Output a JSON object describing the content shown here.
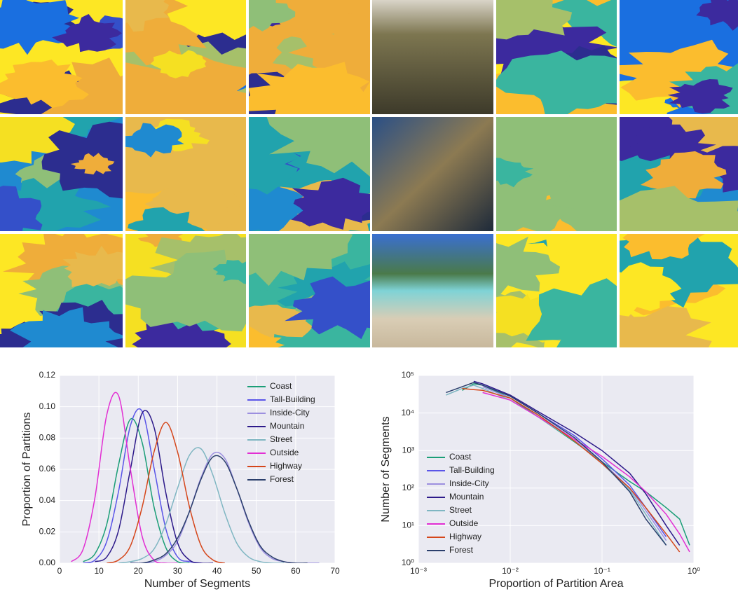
{
  "chart_data": [
    {
      "type": "line",
      "x_label": "Number of Segments",
      "y_label": "Proportion of Partitions",
      "x": [
        3,
        6,
        9,
        12,
        15,
        18,
        21,
        24,
        27,
        30,
        33,
        36,
        39,
        42,
        45,
        48,
        51,
        54,
        57,
        60,
        63,
        66
      ],
      "xlim": [
        0,
        70
      ],
      "xticks": [
        0,
        10,
        20,
        30,
        40,
        50,
        60,
        70
      ],
      "ylim": [
        0,
        0.12
      ],
      "yticks": [
        {
          "value": 0,
          "label": "0.00"
        },
        {
          "value": 0.02,
          "label": "0.02"
        },
        {
          "value": 0.04,
          "label": "0.04"
        },
        {
          "value": 0.06,
          "label": "0.06"
        },
        {
          "value": 0.08,
          "label": "0.08"
        },
        {
          "value": 0.1,
          "label": "0.10"
        },
        {
          "value": 0.12,
          "label": "0.12"
        }
      ],
      "grid": true,
      "legend": "upper right",
      "smooth": true,
      "series": [
        {
          "name": "Coast",
          "color": "#1b9e77",
          "values": [
            null,
            0.001,
            0.006,
            0.025,
            0.063,
            0.092,
            0.077,
            0.036,
            0.01,
            0.001,
            0.0,
            null,
            null,
            null,
            null,
            null,
            null,
            null,
            null,
            null,
            null,
            null
          ]
        },
        {
          "name": "Tall-Building",
          "color": "#5a55e8",
          "values": [
            null,
            0.0,
            0.002,
            0.014,
            0.046,
            0.088,
            0.097,
            0.061,
            0.022,
            0.004,
            0.001,
            0.0,
            null,
            null,
            null,
            null,
            null,
            null,
            null,
            null,
            null,
            null
          ]
        },
        {
          "name": "Inside-City",
          "color": "#9c8fdf",
          "values": [
            null,
            null,
            null,
            null,
            null,
            0.0,
            0.0,
            0.001,
            0.005,
            0.014,
            0.033,
            0.055,
            0.07,
            0.067,
            0.048,
            0.026,
            0.01,
            0.003,
            0.001,
            0.0,
            0.0,
            0.0
          ]
        },
        {
          "name": "Mountain",
          "color": "#2d1a8a",
          "values": [
            null,
            null,
            0.001,
            0.004,
            0.021,
            0.06,
            0.096,
            0.087,
            0.045,
            0.013,
            0.002,
            0.0,
            0.0,
            null,
            null,
            null,
            null,
            null,
            null,
            null,
            null,
            null
          ]
        },
        {
          "name": "Street",
          "color": "#7fb6c2",
          "values": [
            null,
            null,
            null,
            null,
            0.0,
            0.001,
            0.003,
            0.009,
            0.025,
            0.048,
            0.069,
            0.073,
            0.056,
            0.032,
            0.013,
            0.004,
            0.001,
            0.0,
            0.0,
            null,
            null,
            null
          ]
        },
        {
          "name": "Outside",
          "color": "#e22fd3",
          "values": [
            0.001,
            0.009,
            0.042,
            0.095,
            0.107,
            0.06,
            0.017,
            0.002,
            0.0,
            0.0,
            null,
            null,
            null,
            null,
            null,
            null,
            null,
            null,
            null,
            null,
            null,
            null
          ]
        },
        {
          "name": "Highway",
          "color": "#d5461a",
          "values": [
            null,
            null,
            null,
            0.0,
            0.002,
            0.011,
            0.036,
            0.071,
            0.09,
            0.071,
            0.036,
            0.011,
            0.002,
            0.0,
            null,
            null,
            null,
            null,
            null,
            null,
            null,
            null
          ]
        },
        {
          "name": "Forest",
          "color": "#2b3f6c",
          "values": [
            null,
            null,
            null,
            null,
            null,
            0.0,
            0.0,
            0.002,
            0.006,
            0.016,
            0.033,
            0.054,
            0.068,
            0.065,
            0.048,
            0.027,
            0.011,
            0.004,
            0.001,
            0.0,
            0.0,
            null
          ]
        }
      ]
    },
    {
      "type": "line",
      "x_label": "Proportion of Partition Area",
      "y_label": "Number of Segments",
      "x": [
        0.002,
        0.003,
        0.004,
        0.005,
        0.01,
        0.02,
        0.05,
        0.1,
        0.2,
        0.3,
        0.5,
        0.7,
        0.9
      ],
      "xscale": "log",
      "yscale": "log",
      "xlim": [
        0.001,
        1
      ],
      "xticks": [
        {
          "value": 0.001,
          "label": "10⁻³"
        },
        {
          "value": 0.01,
          "label": "10⁻²"
        },
        {
          "value": 0.1,
          "label": "10⁻¹"
        },
        {
          "value": 1,
          "label": "10⁰"
        }
      ],
      "ylim": [
        1,
        100000
      ],
      "yticks": [
        {
          "value": 1,
          "label": "10⁰"
        },
        {
          "value": 10,
          "label": "10¹"
        },
        {
          "value": 100,
          "label": "10²"
        },
        {
          "value": 1000,
          "label": "10³"
        },
        {
          "value": 10000,
          "label": "10⁴"
        },
        {
          "value": 100000,
          "label": "10⁵"
        }
      ],
      "grid": true,
      "legend": "lower left",
      "smooth": false,
      "series": [
        {
          "name": "Coast",
          "color": "#1b9e77",
          "values": [
            null,
            40000,
            60000,
            55000,
            25000,
            8000,
            1700,
            500,
            150,
            80,
            30,
            15,
            3
          ]
        },
        {
          "name": "Tall-Building",
          "color": "#5a55e8",
          "values": [
            null,
            null,
            65000,
            55000,
            28000,
            10000,
            2500,
            600,
            120,
            30,
            5,
            null,
            null
          ]
        },
        {
          "name": "Inside-City",
          "color": "#9c8fdf",
          "values": [
            null,
            null,
            null,
            50000,
            25000,
            9000,
            2000,
            500,
            100,
            25,
            4,
            null,
            null
          ]
        },
        {
          "name": "Mountain",
          "color": "#2d1a8a",
          "values": [
            null,
            null,
            70000,
            60000,
            30000,
            11000,
            3000,
            1000,
            250,
            70,
            10,
            3,
            null
          ]
        },
        {
          "name": "Street",
          "color": "#7fb6c2",
          "values": [
            30000,
            45000,
            55000,
            45000,
            22000,
            8000,
            1800,
            450,
            90,
            20,
            3,
            null,
            null
          ]
        },
        {
          "name": "Outside",
          "color": "#e22fd3",
          "values": [
            null,
            null,
            null,
            35000,
            22000,
            8000,
            2000,
            700,
            200,
            80,
            20,
            6,
            2
          ]
        },
        {
          "name": "Highway",
          "color": "#d5461a",
          "values": [
            null,
            45000,
            42000,
            40000,
            25000,
            9000,
            1800,
            450,
            100,
            30,
            6,
            2,
            null
          ]
        },
        {
          "name": "Forest",
          "color": "#2b3f6c",
          "values": [
            35000,
            50000,
            65000,
            55000,
            28000,
            10000,
            2200,
            500,
            80,
            15,
            3,
            null,
            null
          ]
        }
      ]
    }
  ]
}
